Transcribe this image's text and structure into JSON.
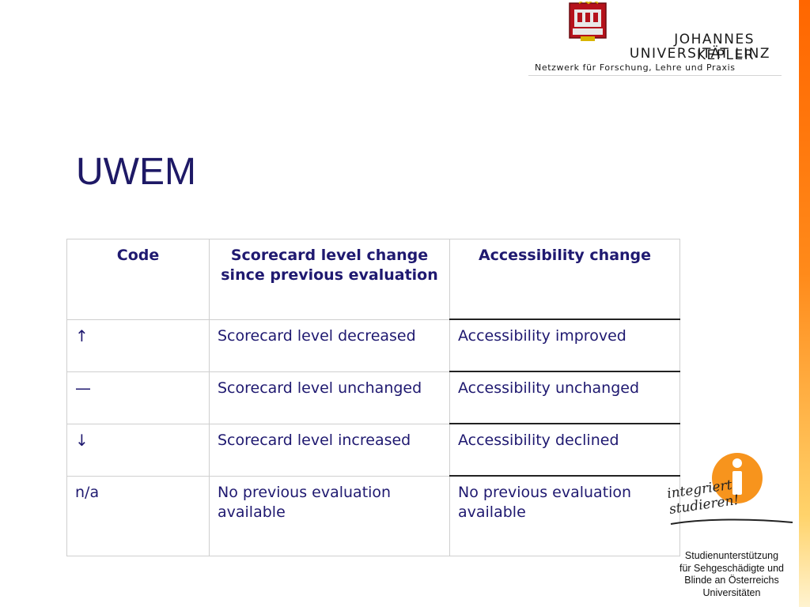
{
  "header": {
    "logo_name_line1": "JOHANNES KEPLER",
    "logo_name_line2": "UNIVERSITÄT LINZ",
    "logo_tagline": "Netzwerk für Forschung, Lehre und Praxis",
    "accent_color": "#ff6600"
  },
  "slide": {
    "title": "UWEM"
  },
  "table": {
    "headers": [
      "Code",
      "Scorecard level change since previous evaluation",
      "Accessibility change"
    ],
    "rows": [
      [
        "↑",
        "Scorecard level decreased",
        "Accessibility improved"
      ],
      [
        "—",
        "Scorecard level unchanged",
        "Accessibility unchanged"
      ],
      [
        "↓",
        "Scorecard level increased",
        "Accessibility declined"
      ],
      [
        "n/a",
        "No previous evaluation available",
        "No previous evaluation available"
      ]
    ]
  },
  "footer_logo": {
    "script_text": "integriert studieren!",
    "caption_lines": [
      "Studienunterstützung",
      "für Sehgeschädigte und",
      "Blinde an Österreichs",
      "Universitäten"
    ],
    "icon": "info-icon",
    "icon_color": "#f7941d"
  }
}
